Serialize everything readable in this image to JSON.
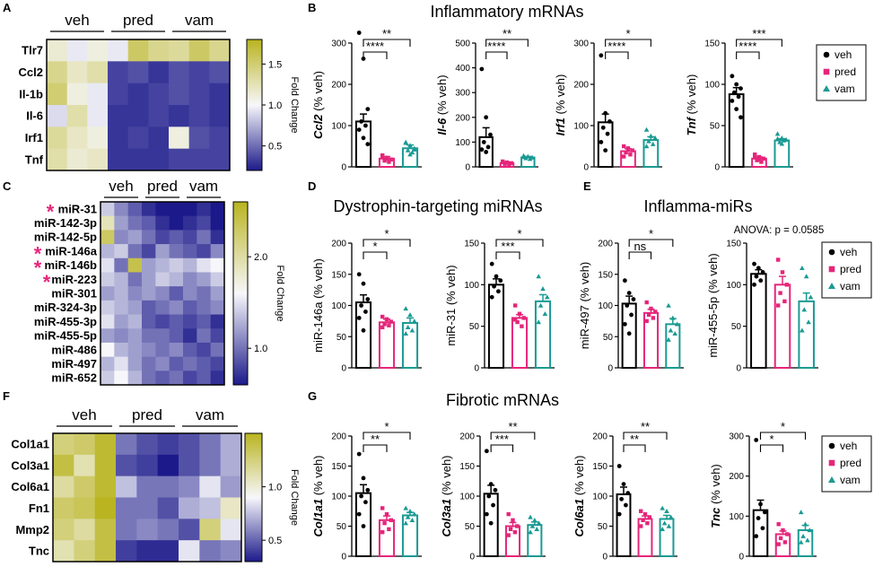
{
  "colors": {
    "veh": "#000000",
    "pred": "#e6257a",
    "vam": "#1a9a93",
    "heat_low": "#1c1a8a",
    "heat_mid": "#f7f7fb",
    "heat_high": "#b9b420"
  },
  "panel_letters": {
    "A": "A",
    "B": "B",
    "C": "C",
    "D": "D",
    "E": "E",
    "F": "F",
    "G": "G"
  },
  "section_titles": {
    "B": "Inflammatory mRNAs",
    "D": "Dystrophin-targeting miRNAs",
    "E": "Inflamma-miRs",
    "G": "Fibrotic mRNAs"
  },
  "anova_text": "ANOVA: p = 0.0585",
  "legend_labels": [
    "veh",
    "pred",
    "vam"
  ],
  "heatmaps": [
    {
      "panel": "A",
      "groups": [
        "veh",
        "pred",
        "vam"
      ],
      "rows": [
        "Tlr7",
        "Ccl2",
        "Il-1b",
        "Il-6",
        "Irf1",
        "Tnf"
      ],
      "starred": [],
      "matrix": [
        [
          1.15,
          0.95,
          1.1,
          0.95,
          1.55,
          1.4,
          1.35,
          1.55,
          1.4
        ],
        [
          1.4,
          1.2,
          1.3,
          0.35,
          0.4,
          0.3,
          0.4,
          0.35,
          0.4
        ],
        [
          1.5,
          1.1,
          0.95,
          0.35,
          0.3,
          0.35,
          0.4,
          0.35,
          0.3
        ],
        [
          0.9,
          1.3,
          0.95,
          0.3,
          0.3,
          0.35,
          0.3,
          0.35,
          0.3
        ],
        [
          1.35,
          1.2,
          1.1,
          0.3,
          0.35,
          0.3,
          1.1,
          0.4,
          0.35
        ],
        [
          1.3,
          1.15,
          1.2,
          0.3,
          0.3,
          0.3,
          0.35,
          0.35,
          0.35
        ]
      ],
      "cbar_min": 0.2,
      "cbar_max": 1.8,
      "cbar_ticks": [
        0.5,
        1.0,
        1.5
      ],
      "cbar_tick_labels": [
        "0.5",
        "1.0",
        "1.5"
      ],
      "cbar_label": "Fold Change"
    },
    {
      "panel": "C",
      "groups": [
        "veh",
        "pred",
        "vam"
      ],
      "rows": [
        "miR-31",
        "miR-142-3p",
        "miR-142-5p",
        "miR-146a",
        "miR-146b",
        "miR-223",
        "miR-301",
        "miR-324-3p",
        "miR-455-3p",
        "miR-455-5p",
        "miR-486",
        "miR-497",
        "miR-652"
      ],
      "starred": [
        0,
        3,
        4,
        5
      ],
      "matrix": [
        [
          1.4,
          1.1,
          0.9,
          0.7,
          0.6,
          0.5,
          0.6,
          0.7,
          0.6
        ],
        [
          1.9,
          1.2,
          1.0,
          0.9,
          0.7,
          0.6,
          0.7,
          0.8,
          0.6
        ],
        [
          2.3,
          1.1,
          1.2,
          1.0,
          0.8,
          0.9,
          0.8,
          1.0,
          0.7
        ],
        [
          1.3,
          1.4,
          1.0,
          0.8,
          1.2,
          1.0,
          0.9,
          0.8,
          1.1
        ],
        [
          1.5,
          1.0,
          2.4,
          1.2,
          1.3,
          1.4,
          1.3,
          1.5,
          1.6
        ],
        [
          1.4,
          1.3,
          1.0,
          1.2,
          1.4,
          1.3,
          1.1,
          1.2,
          1.4
        ],
        [
          1.2,
          1.3,
          1.1,
          1.2,
          1.1,
          0.9,
          1.1,
          1.0,
          1.2
        ],
        [
          1.4,
          1.3,
          1.2,
          0.9,
          1.0,
          1.1,
          0.9,
          1.0,
          1.1
        ],
        [
          1.5,
          1.2,
          1.3,
          0.9,
          0.8,
          0.9,
          0.8,
          0.9,
          0.7
        ],
        [
          1.2,
          1.1,
          1.2,
          1.0,
          1.0,
          0.9,
          0.7,
          1.0,
          0.8
        ],
        [
          1.6,
          1.3,
          1.2,
          1.1,
          1.0,
          1.1,
          0.9,
          0.8,
          1.0
        ],
        [
          1.3,
          1.5,
          1.2,
          1.0,
          1.1,
          0.9,
          1.0,
          0.9,
          0.8
        ],
        [
          1.4,
          1.6,
          1.3,
          1.0,
          0.9,
          1.0,
          0.8,
          0.9,
          0.7
        ]
      ],
      "cbar_min": 0.6,
      "cbar_max": 2.6,
      "cbar_ticks": [
        1.0,
        2.0
      ],
      "cbar_tick_labels": [
        "1.0",
        "2.0"
      ],
      "cbar_label": "Fold Change"
    },
    {
      "panel": "F",
      "groups": [
        "veh",
        "pred",
        "vam"
      ],
      "rows": [
        "Col1a1",
        "Col3a1",
        "Col6a1",
        "Fn1",
        "Mmp2",
        "Tnc"
      ],
      "starred": [],
      "matrix": [
        [
          1.25,
          1.3,
          1.45,
          0.55,
          0.45,
          0.4,
          0.45,
          0.55,
          0.7
        ],
        [
          1.4,
          1.1,
          1.45,
          0.45,
          0.4,
          0.3,
          0.45,
          0.55,
          0.7
        ],
        [
          1.15,
          1.3,
          1.45,
          0.75,
          0.55,
          0.55,
          0.6,
          0.85,
          0.65
        ],
        [
          1.3,
          1.35,
          1.5,
          0.55,
          0.55,
          0.45,
          0.7,
          0.75,
          1.05
        ],
        [
          1.25,
          1.15,
          1.4,
          0.55,
          0.6,
          0.55,
          0.45,
          1.25,
          0.85
        ],
        [
          1.1,
          1.25,
          1.4,
          0.4,
          0.35,
          0.35,
          0.85,
          0.55,
          0.6
        ]
      ],
      "cbar_min": 0.3,
      "cbar_max": 1.5,
      "cbar_ticks": [
        0.5,
        1.0
      ],
      "cbar_tick_labels": [
        "0.5",
        "1.0"
      ],
      "cbar_label": "Fold Change"
    }
  ],
  "chart_data": [
    {
      "type": "bar",
      "panel": "B",
      "ylabel": "Ccl2 (% veh)",
      "ylabel_italic": "Ccl2",
      "ylabel_rest": " (% veh)",
      "categories": [
        "veh",
        "pred",
        "vam"
      ],
      "ylim": [
        0,
        300
      ],
      "yticks": [
        0,
        100,
        200,
        300
      ],
      "values": [
        110,
        20,
        45
      ],
      "sem": [
        18,
        5,
        8
      ],
      "points": [
        [
          325,
          262,
          140,
          110,
          100,
          90,
          70,
          55
        ],
        [
          28,
          22,
          18,
          15,
          12,
          25,
          20
        ],
        [
          60,
          52,
          45,
          40,
          35,
          58,
          30,
          42
        ]
      ],
      "sig": [
        {
          "from": 0,
          "to": 1,
          "label": "****"
        },
        {
          "from": 0,
          "to": 2,
          "label": "**"
        }
      ]
    },
    {
      "type": "bar",
      "panel": "B",
      "ylabel": "Il-6 (% veh)",
      "ylabel_italic": "Il-6",
      "ylabel_rest": " (% veh)",
      "categories": [
        "veh",
        "pred",
        "vam"
      ],
      "ylim": [
        0,
        500
      ],
      "yticks": [
        0,
        100,
        200,
        300,
        400,
        500
      ],
      "values": [
        120,
        15,
        38
      ],
      "sem": [
        38,
        4,
        4
      ],
      "points": [
        [
          395,
          200,
          130,
          100,
          80,
          70,
          60
        ],
        [
          22,
          18,
          15,
          12,
          10,
          20
        ],
        [
          45,
          42,
          38,
          35,
          32,
          40
        ]
      ],
      "sig": [
        {
          "from": 0,
          "to": 1,
          "label": "****"
        },
        {
          "from": 0,
          "to": 2,
          "label": "**"
        }
      ]
    },
    {
      "type": "bar",
      "panel": "B",
      "ylabel": "Irf1 (% veh)",
      "ylabel_italic": "Irf1",
      "ylabel_rest": " (% veh)",
      "categories": [
        "veh",
        "pred",
        "vam"
      ],
      "ylim": [
        0,
        300
      ],
      "yticks": [
        0,
        100,
        200,
        300
      ],
      "values": [
        108,
        38,
        65
      ],
      "sem": [
        20,
        6,
        8
      ],
      "points": [
        [
          270,
          130,
          110,
          95,
          80,
          60,
          40
        ],
        [
          50,
          45,
          40,
          35,
          30,
          25
        ],
        [
          90,
          75,
          70,
          62,
          55,
          50
        ]
      ],
      "sig": [
        {
          "from": 0,
          "to": 1,
          "label": "****"
        },
        {
          "from": 0,
          "to": 2,
          "label": "*"
        }
      ]
    },
    {
      "type": "bar",
      "panel": "B",
      "ylabel": "Tnf (% veh)",
      "ylabel_italic": "Tnf",
      "ylabel_rest": " (% veh)",
      "categories": [
        "veh",
        "pred",
        "vam"
      ],
      "ylim": [
        0,
        150
      ],
      "yticks": [
        0,
        50,
        100,
        150
      ],
      "values": [
        88,
        10,
        32
      ],
      "sem": [
        8,
        2,
        2
      ],
      "points": [
        [
          110,
          100,
          95,
          90,
          85,
          80,
          70,
          60
        ],
        [
          15,
          12,
          10,
          8,
          6,
          12,
          9
        ],
        [
          40,
          35,
          33,
          30,
          32,
          34,
          28
        ]
      ],
      "sig": [
        {
          "from": 0,
          "to": 1,
          "label": "****"
        },
        {
          "from": 0,
          "to": 2,
          "label": "***"
        }
      ]
    },
    {
      "type": "bar",
      "panel": "D",
      "ylabel": "miR-146a (% veh)",
      "ylabel_italic": "",
      "ylabel_rest": "miR-146a (% veh)",
      "categories": [
        "veh",
        "pred",
        "vam"
      ],
      "ylim": [
        0,
        200
      ],
      "yticks": [
        0,
        50,
        100,
        150,
        200
      ],
      "values": [
        105,
        73,
        72
      ],
      "sem": [
        12,
        5,
        8
      ],
      "points": [
        [
          150,
          135,
          110,
          100,
          90,
          80,
          60
        ],
        [
          82,
          78,
          74,
          70,
          68,
          65
        ],
        [
          95,
          85,
          75,
          65,
          60,
          55
        ]
      ],
      "sig": [
        {
          "from": 0,
          "to": 1,
          "label": "*"
        },
        {
          "from": 0,
          "to": 2,
          "label": "*"
        }
      ]
    },
    {
      "type": "bar",
      "panel": "D",
      "ylabel": "miR-31 (% veh)",
      "ylabel_italic": "",
      "ylabel_rest": "miR-31 (% veh)",
      "categories": [
        "veh",
        "pred",
        "vam"
      ],
      "ylim": [
        0,
        150
      ],
      "yticks": [
        0,
        50,
        100,
        150
      ],
      "values": [
        100,
        60,
        80
      ],
      "sem": [
        7,
        4,
        8
      ],
      "points": [
        [
          125,
          110,
          105,
          98,
          92,
          85
        ],
        [
          75,
          65,
          60,
          55,
          50,
          58
        ],
        [
          110,
          95,
          85,
          75,
          65,
          55
        ]
      ],
      "sig": [
        {
          "from": 0,
          "to": 1,
          "label": "***"
        },
        {
          "from": 0,
          "to": 2,
          "label": "*"
        }
      ]
    },
    {
      "type": "bar",
      "panel": "E",
      "ylabel": "miR-497 (% veh)",
      "ylabel_italic": "",
      "ylabel_rest": "miR-497 (% veh)",
      "categories": [
        "veh",
        "pred",
        "vam"
      ],
      "ylim": [
        0,
        200
      ],
      "yticks": [
        0,
        50,
        100,
        150,
        200
      ],
      "values": [
        103,
        88,
        70
      ],
      "sem": [
        12,
        6,
        9
      ],
      "points": [
        [
          140,
          120,
          110,
          100,
          85,
          70,
          55
        ],
        [
          105,
          95,
          90,
          85,
          80,
          75
        ],
        [
          100,
          80,
          70,
          60,
          55,
          45
        ]
      ],
      "sig": [
        {
          "from": 0,
          "to": 1,
          "label": "ns"
        },
        {
          "from": 0,
          "to": 2,
          "label": "*"
        }
      ]
    },
    {
      "type": "bar",
      "panel": "E",
      "ylabel": "miR-455-5p (% veh)",
      "ylabel_italic": "",
      "ylabel_rest": "miR-455-5p (% veh)",
      "categories": [
        "veh",
        "pred",
        "vam"
      ],
      "ylim": [
        0,
        150
      ],
      "yticks": [
        0,
        50,
        100,
        150
      ],
      "values": [
        113,
        100,
        80
      ],
      "sem": [
        5,
        10,
        10
      ],
      "points": [
        [
          125,
          120,
          115,
          110,
          105,
          100
        ],
        [
          130,
          115,
          100,
          90,
          80,
          75
        ],
        [
          120,
          110,
          85,
          70,
          55,
          45
        ]
      ],
      "sig": []
    },
    {
      "type": "bar",
      "panel": "G",
      "ylabel": "Col1a1 (% veh)",
      "ylabel_italic": "Col1a1",
      "ylabel_rest": " (% veh)",
      "categories": [
        "veh",
        "pred",
        "vam"
      ],
      "ylim": [
        0,
        200
      ],
      "yticks": [
        0,
        50,
        100,
        150,
        200
      ],
      "values": [
        105,
        60,
        68
      ],
      "sem": [
        14,
        7,
        5
      ],
      "points": [
        [
          170,
          130,
          110,
          100,
          90,
          70,
          50
        ],
        [
          80,
          70,
          60,
          55,
          45,
          40
        ],
        [
          80,
          75,
          70,
          65,
          60,
          55
        ]
      ],
      "sig": [
        {
          "from": 0,
          "to": 1,
          "label": "**"
        },
        {
          "from": 0,
          "to": 2,
          "label": "*"
        }
      ]
    },
    {
      "type": "bar",
      "panel": "G",
      "ylabel": "Col3a1 (% veh)",
      "ylabel_italic": "Col3a1",
      "ylabel_rest": " (% veh)",
      "categories": [
        "veh",
        "pred",
        "vam"
      ],
      "ylim": [
        0,
        200
      ],
      "yticks": [
        0,
        50,
        100,
        150,
        200
      ],
      "values": [
        104,
        50,
        52
      ],
      "sem": [
        14,
        6,
        5
      ],
      "points": [
        [
          175,
          120,
          110,
          100,
          85,
          70,
          55
        ],
        [
          70,
          60,
          50,
          45,
          40,
          35
        ],
        [
          65,
          60,
          55,
          50,
          45,
          40
        ]
      ],
      "sig": [
        {
          "from": 0,
          "to": 1,
          "label": "***"
        },
        {
          "from": 0,
          "to": 2,
          "label": "**"
        }
      ]
    },
    {
      "type": "bar",
      "panel": "G",
      "ylabel": "Col6a1 (% veh)",
      "ylabel_italic": "Col6a1",
      "ylabel_rest": " (% veh)",
      "categories": [
        "veh",
        "pred",
        "vam"
      ],
      "ylim": [
        0,
        200
      ],
      "yticks": [
        0,
        50,
        100,
        150,
        200
      ],
      "values": [
        103,
        62,
        62
      ],
      "sem": [
        12,
        5,
        6
      ],
      "points": [
        [
          150,
          120,
          105,
          95,
          85,
          70
        ],
        [
          75,
          70,
          65,
          60,
          55,
          50
        ],
        [
          80,
          75,
          65,
          55,
          50,
          45
        ]
      ],
      "sig": [
        {
          "from": 0,
          "to": 1,
          "label": "**"
        },
        {
          "from": 0,
          "to": 2,
          "label": "**"
        }
      ]
    },
    {
      "type": "bar",
      "panel": "G",
      "ylabel": "Tnc (% veh)",
      "ylabel_italic": "Tnc",
      "ylabel_rest": " (% veh)",
      "categories": [
        "veh",
        "pred",
        "vam"
      ],
      "ylim": [
        0,
        300
      ],
      "yticks": [
        0,
        100,
        200,
        300
      ],
      "values": [
        115,
        55,
        65
      ],
      "sem": [
        25,
        8,
        12
      ],
      "points": [
        [
          290,
          130,
          110,
          95,
          70,
          50
        ],
        [
          80,
          65,
          55,
          45,
          35,
          30
        ],
        [
          110,
          80,
          65,
          50,
          40,
          35
        ]
      ],
      "sig": [
        {
          "from": 0,
          "to": 1,
          "label": "*"
        },
        {
          "from": 0,
          "to": 2,
          "label": "*"
        }
      ]
    }
  ]
}
